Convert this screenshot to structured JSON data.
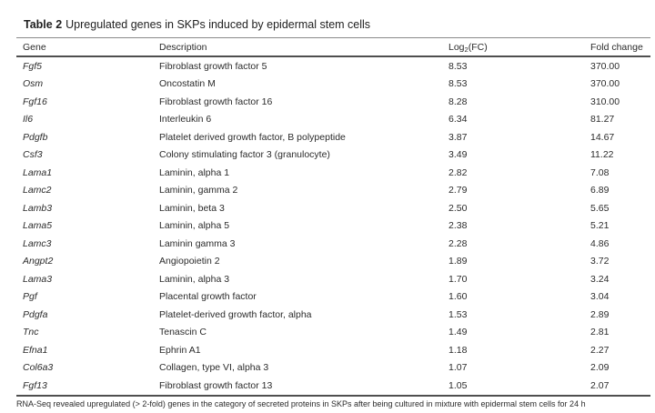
{
  "table": {
    "label": "Table 2",
    "title": "Upregulated genes in SKPs induced by epidermal stem cells",
    "columns": {
      "gene": "Gene",
      "description": "Description",
      "log2fc_prefix": "Log",
      "log2fc_sub": "2",
      "log2fc_suffix": "(FC)",
      "fold_change": "Fold change"
    },
    "rows": [
      {
        "gene": "Fgf5",
        "description": "Fibroblast growth factor 5",
        "log2fc": "8.53",
        "fold_change": "370.00"
      },
      {
        "gene": "Osm",
        "description": "Oncostatin M",
        "log2fc": "8.53",
        "fold_change": "370.00"
      },
      {
        "gene": "Fgf16",
        "description": "Fibroblast growth factor 16",
        "log2fc": "8.28",
        "fold_change": "310.00"
      },
      {
        "gene": "Il6",
        "description": "Interleukin 6",
        "log2fc": "6.34",
        "fold_change": "81.27"
      },
      {
        "gene": "Pdgfb",
        "description": "Platelet derived growth factor, B polypeptide",
        "log2fc": "3.87",
        "fold_change": "14.67"
      },
      {
        "gene": "Csf3",
        "description": "Colony stimulating factor 3 (granulocyte)",
        "log2fc": "3.49",
        "fold_change": "11.22"
      },
      {
        "gene": "Lama1",
        "description": "Laminin, alpha 1",
        "log2fc": "2.82",
        "fold_change": "7.08"
      },
      {
        "gene": "Lamc2",
        "description": "Laminin, gamma 2",
        "log2fc": "2.79",
        "fold_change": "6.89"
      },
      {
        "gene": "Lamb3",
        "description": "Laminin, beta 3",
        "log2fc": "2.50",
        "fold_change": "5.65"
      },
      {
        "gene": "Lama5",
        "description": "Laminin, alpha 5",
        "log2fc": "2.38",
        "fold_change": "5.21"
      },
      {
        "gene": "Lamc3",
        "description": "Laminin gamma 3",
        "log2fc": "2.28",
        "fold_change": "4.86"
      },
      {
        "gene": "Angpt2",
        "description": "Angiopoietin 2",
        "log2fc": "1.89",
        "fold_change": "3.72"
      },
      {
        "gene": "Lama3",
        "description": "Laminin, alpha 3",
        "log2fc": "1.70",
        "fold_change": "3.24"
      },
      {
        "gene": "Pgf",
        "description": "Placental growth factor",
        "log2fc": "1.60",
        "fold_change": "3.04"
      },
      {
        "gene": "Pdgfa",
        "description": "Platelet-derived growth factor, alpha",
        "log2fc": "1.53",
        "fold_change": "2.89"
      },
      {
        "gene": "Tnc",
        "description": "Tenascin C",
        "log2fc": "1.49",
        "fold_change": "2.81"
      },
      {
        "gene": "Efna1",
        "description": "Ephrin A1",
        "log2fc": "1.18",
        "fold_change": "2.27"
      },
      {
        "gene": "Col6a3",
        "description": "Collagen, type VI, alpha 3",
        "log2fc": "1.07",
        "fold_change": "2.09"
      },
      {
        "gene": "Fgf13",
        "description": "Fibroblast growth factor 13",
        "log2fc": "1.05",
        "fold_change": "2.07"
      }
    ],
    "footnote": "RNA-Seq revealed upregulated (> 2-fold) genes in the category of secreted proteins in SKPs after being cultured in mixture with epidermal stem cells for 24 h"
  },
  "colors": {
    "text": "#2b2b2b",
    "rule_top": "#8a8a8a",
    "rule_heavy": "#4f4f4f",
    "background": "#ffffff"
  }
}
